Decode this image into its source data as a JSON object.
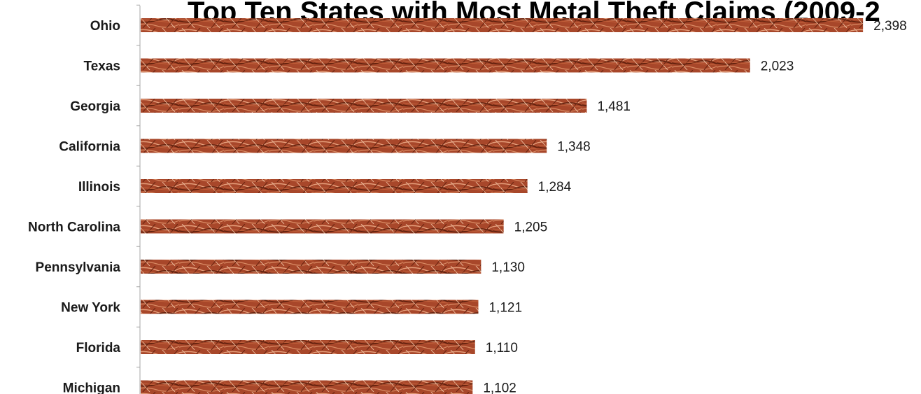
{
  "chart_data": {
    "type": "bar",
    "orientation": "horizontal",
    "title": "Top Ten States with Most Metal Theft Claims (2009-2",
    "categories": [
      "Ohio",
      "Texas",
      "Georgia",
      "California",
      "Illinois",
      "North Carolina",
      "Pennsylvania",
      "New York",
      "Florida",
      "Michigan"
    ],
    "values": [
      2398,
      2023,
      1481,
      1348,
      1284,
      1205,
      1130,
      1121,
      1110,
      1102
    ],
    "value_labels": [
      "2,398",
      "2,023",
      "1,481",
      "1,348",
      "1,284",
      "1,205",
      "1,130",
      "1,121",
      "1,110",
      "1,102"
    ],
    "xlabel": "",
    "ylabel": "",
    "xlim": [
      0,
      2400
    ],
    "grid": false,
    "legend": "none",
    "colors": {
      "bar_base": "#a8472a",
      "bar_dark": "#5e1f0c",
      "bar_light": "#e6a07c",
      "axis": "#a6a6a6",
      "text": "#1a1a1a"
    }
  }
}
